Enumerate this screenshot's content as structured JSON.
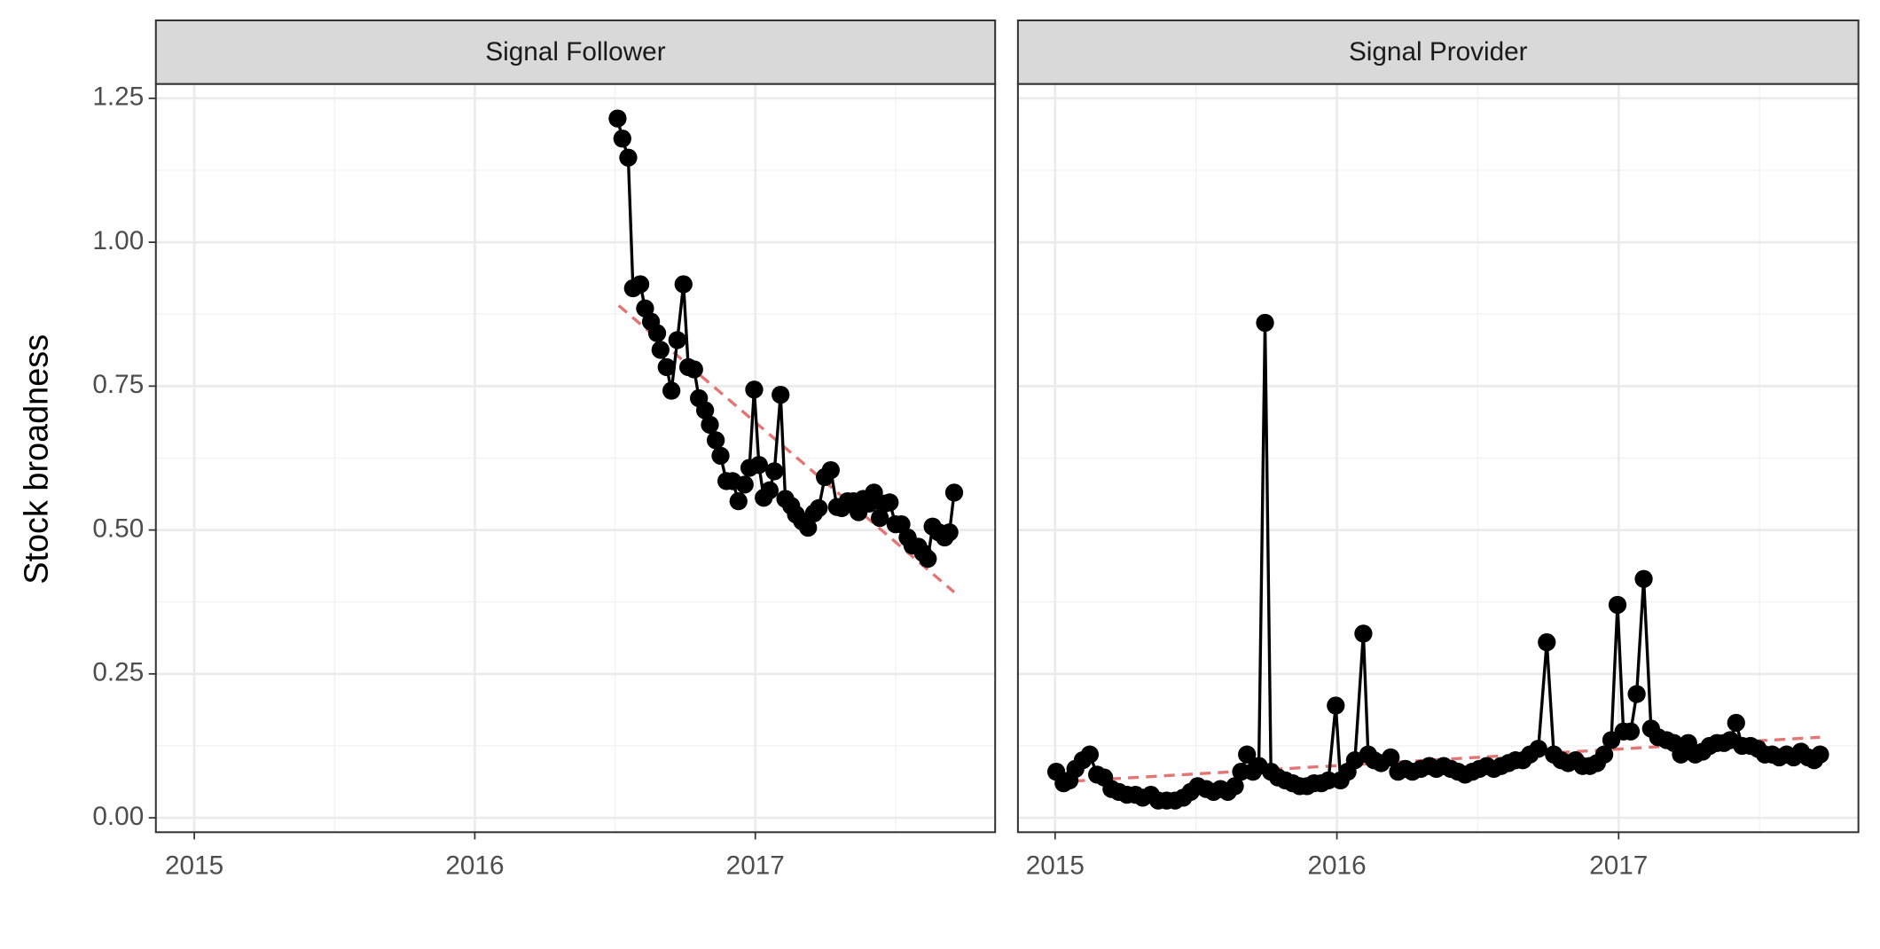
{
  "chart_data": [
    {
      "type": "line",
      "title": "Signal Follower",
      "ylabel": "Stock broadness",
      "color": "#000000",
      "x": [
        2016.509,
        2016.526,
        2016.547,
        2016.564,
        2016.59,
        2016.607,
        2016.628,
        2016.65,
        2016.662,
        2016.684,
        2016.701,
        2016.722,
        2016.744,
        2016.761,
        2016.782,
        2016.799,
        2016.821,
        2016.838,
        2016.859,
        2016.876,
        2016.897,
        2016.919,
        2016.94,
        2016.962,
        2016.979,
        2016.996,
        2017.013,
        2017.03,
        2017.051,
        2017.068,
        2017.09,
        2017.107,
        2017.128,
        2017.145,
        2017.167,
        2017.188,
        2017.209,
        2017.226,
        2017.248,
        2017.269,
        2017.291,
        2017.308,
        2017.329,
        2017.35,
        2017.368,
        2017.385,
        2017.406,
        2017.423,
        2017.444,
        2017.462,
        2017.479,
        2017.5,
        2017.521,
        2017.543,
        2017.56,
        2017.581,
        2017.598,
        2017.615,
        2017.632,
        2017.654,
        2017.675,
        2017.692,
        2017.709
      ],
      "values": [
        1.215,
        1.18,
        1.147,
        0.92,
        0.927,
        0.885,
        0.862,
        0.842,
        0.813,
        0.783,
        0.742,
        0.83,
        0.927,
        0.783,
        0.779,
        0.729,
        0.708,
        0.683,
        0.656,
        0.629,
        0.585,
        0.585,
        0.55,
        0.579,
        0.608,
        0.744,
        0.613,
        0.556,
        0.569,
        0.602,
        0.735,
        0.554,
        0.542,
        0.527,
        0.515,
        0.504,
        0.529,
        0.538,
        0.592,
        0.604,
        0.54,
        0.538,
        0.55,
        0.55,
        0.531,
        0.554,
        0.546,
        0.565,
        0.521,
        0.546,
        0.548,
        0.51,
        0.51,
        0.487,
        0.473,
        0.471,
        0.46,
        0.45,
        0.506,
        0.496,
        0.487,
        0.496,
        0.565
      ],
      "trend": {
        "x": [
          2016.513,
          2017.709
        ],
        "values": [
          0.89,
          0.392
        ],
        "color": "#e06666"
      },
      "xlim": [
        2014.863,
        2017.855
      ],
      "ylim": [
        -0.025,
        1.275
      ],
      "xticks": [
        2015,
        2016,
        2017
      ],
      "xminor": [
        2015.5,
        2016.5,
        2017.5
      ],
      "yticks": [
        {
          "value": 0,
          "label": "0.00"
        },
        0.25,
        {
          "value": 0.5,
          "label": "0.50"
        },
        0.75,
        {
          "value": 1,
          "label": "1.00"
        },
        1.25
      ],
      "yminor": [
        0.125,
        0.375,
        0.625,
        0.875,
        1.125
      ],
      "grid": true
    },
    {
      "type": "line",
      "title": "Signal Provider",
      "color": "#000000",
      "x": [
        2015.004,
        2015.03,
        2015.051,
        2015.072,
        2015.098,
        2015.123,
        2015.149,
        2015.174,
        2015.2,
        2015.226,
        2015.255,
        2015.285,
        2015.311,
        2015.34,
        2015.366,
        2015.396,
        2015.426,
        2015.455,
        2015.481,
        2015.506,
        2015.536,
        2015.562,
        2015.587,
        2015.613,
        2015.638,
        2015.66,
        2015.681,
        2015.702,
        2015.723,
        2015.745,
        2015.766,
        2015.791,
        2015.817,
        2015.843,
        2015.868,
        2015.894,
        2015.919,
        2015.945,
        2015.97,
        2015.996,
        2016.013,
        2016.038,
        2016.064,
        2016.094,
        2016.111,
        2016.132,
        2016.157,
        2016.191,
        2016.217,
        2016.243,
        2016.268,
        2016.298,
        2016.328,
        2016.353,
        2016.379,
        2016.404,
        2016.43,
        2016.455,
        2016.481,
        2016.506,
        2016.532,
        2016.557,
        2016.583,
        2016.609,
        2016.634,
        2016.66,
        2016.685,
        2016.715,
        2016.745,
        2016.77,
        2016.796,
        2016.821,
        2016.847,
        2016.872,
        2016.898,
        2016.923,
        2016.949,
        2016.974,
        2016.996,
        2017.017,
        2017.043,
        2017.064,
        2017.089,
        2017.115,
        2017.14,
        2017.17,
        2017.196,
        2017.221,
        2017.247,
        2017.272,
        2017.298,
        2017.323,
        2017.349,
        2017.374,
        2017.396,
        2017.417,
        2017.438,
        2017.468,
        2017.494,
        2017.519,
        2017.545,
        2017.57,
        2017.596,
        2017.621,
        2017.647,
        2017.672,
        2017.694,
        2017.715
      ],
      "values": [
        0.08,
        0.06,
        0.065,
        0.085,
        0.1,
        0.11,
        0.075,
        0.07,
        0.05,
        0.045,
        0.04,
        0.04,
        0.035,
        0.04,
        0.03,
        0.03,
        0.03,
        0.035,
        0.045,
        0.055,
        0.05,
        0.045,
        0.05,
        0.045,
        0.055,
        0.08,
        0.11,
        0.08,
        0.09,
        0.86,
        0.08,
        0.07,
        0.065,
        0.06,
        0.055,
        0.055,
        0.06,
        0.06,
        0.065,
        0.195,
        0.065,
        0.08,
        0.1,
        0.32,
        0.11,
        0.1,
        0.095,
        0.105,
        0.08,
        0.085,
        0.08,
        0.085,
        0.09,
        0.085,
        0.09,
        0.085,
        0.08,
        0.075,
        0.08,
        0.085,
        0.09,
        0.085,
        0.09,
        0.095,
        0.1,
        0.1,
        0.11,
        0.12,
        0.305,
        0.11,
        0.1,
        0.095,
        0.1,
        0.09,
        0.09,
        0.095,
        0.11,
        0.135,
        0.37,
        0.15,
        0.15,
        0.215,
        0.415,
        0.155,
        0.14,
        0.135,
        0.13,
        0.11,
        0.13,
        0.11,
        0.115,
        0.125,
        0.13,
        0.13,
        0.135,
        0.165,
        0.125,
        0.125,
        0.12,
        0.11,
        0.11,
        0.105,
        0.11,
        0.105,
        0.115,
        0.105,
        0.1,
        0.11
      ],
      "trend": {
        "x": [
          2015.004,
          2017.715
        ],
        "values": [
          0.062,
          0.14
        ],
        "color": "#e06666"
      },
      "xlim": [
        2014.868,
        2017.851
      ],
      "ylim": [
        -0.025,
        1.275
      ],
      "xticks": [
        2015,
        2016,
        2017
      ],
      "xminor": [
        2015.5,
        2016.5,
        2017.5
      ],
      "yticks": [
        0,
        0.25,
        0.5,
        0.75,
        1,
        1.25
      ],
      "yminor": [
        0.125,
        0.375,
        0.625,
        0.875,
        1.125
      ],
      "grid": true
    }
  ]
}
